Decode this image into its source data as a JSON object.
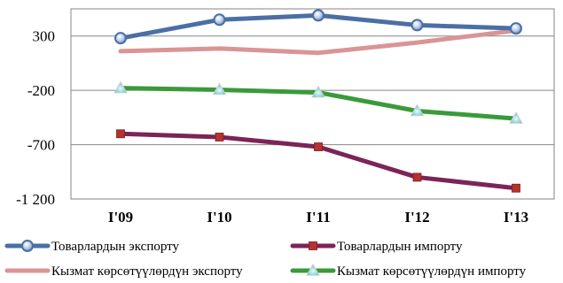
{
  "chart_data": {
    "type": "line",
    "categories": [
      "I'09",
      "I'10",
      "I'11",
      "I'12",
      "I'13"
    ],
    "ylim": [
      -1200,
      550
    ],
    "yticks": [
      300,
      -200,
      -700,
      -1200
    ],
    "ytick_labels": [
      "300",
      "-200",
      "-700",
      "-1 200"
    ],
    "grid": true,
    "legend_position": "bottom",
    "series": [
      {
        "name": "Товарлардын экспорту",
        "values": [
          280,
          450,
          490,
          400,
          370
        ],
        "color": "#4a6fa5",
        "marker": "circle"
      },
      {
        "name": "Товарлардын импорту",
        "values": [
          -600,
          -630,
          -720,
          -1000,
          -1100
        ],
        "color": "#7b2457",
        "marker": "square"
      },
      {
        "name": "Кызмат көрсөтүүлөрдүн экспорту",
        "values": [
          160,
          185,
          145,
          240,
          350
        ],
        "color": "#d99594",
        "marker": "none"
      },
      {
        "name": "Кызмат көрсөтүүлөрдүн импорту",
        "values": [
          -180,
          -195,
          -220,
          -390,
          -460
        ],
        "color": "#3a9a3a",
        "marker": "triangle"
      }
    ]
  }
}
